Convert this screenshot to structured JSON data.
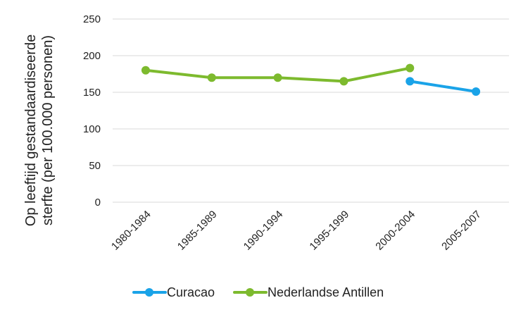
{
  "chart_data": {
    "type": "line",
    "categories": [
      "1980-1984",
      "1985-1989",
      "1990-1994",
      "1995-1999",
      "2000-2004",
      "2005-2007"
    ],
    "series": [
      {
        "name": "Curacao",
        "values": [
          null,
          null,
          null,
          null,
          165,
          151
        ],
        "color": "#1aa3e8"
      },
      {
        "name": "Nederlandse Antillen",
        "values": [
          180,
          170,
          170,
          165,
          183,
          null
        ],
        "color": "#7dba2e"
      }
    ],
    "ylabel_lines": [
      "Op leeftijd gestandaardiseerde",
      "sterfte (per 100.000 personen)"
    ],
    "ylim": [
      0,
      250
    ],
    "yticks": [
      0,
      50,
      100,
      150,
      200,
      250
    ],
    "grid": true,
    "legend_position": "bottom"
  }
}
